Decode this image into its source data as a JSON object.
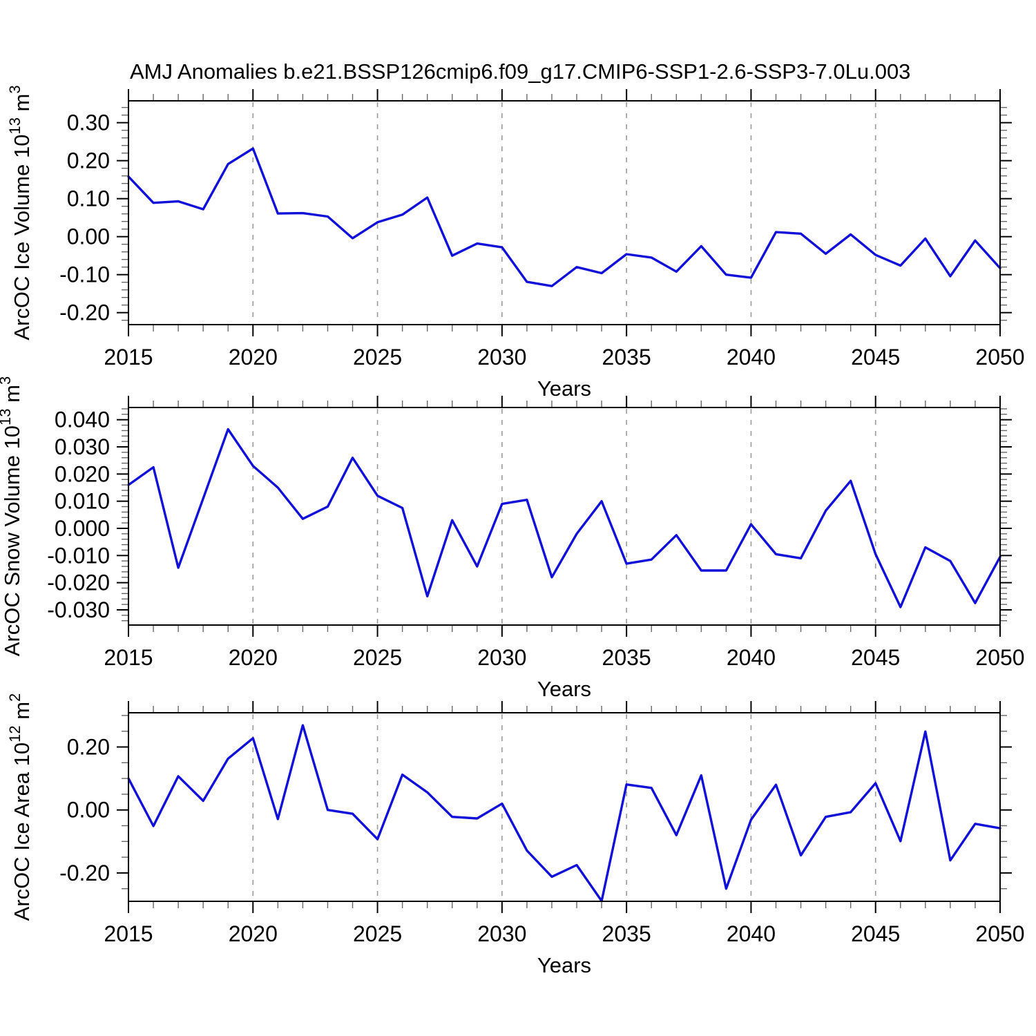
{
  "title": "AMJ Anomalies b.e21.BSSP126cmip6.f09_g17.CMIP6-SSP1-2.6-SSP3-7.0Lu.003",
  "xlabel": "Years",
  "line_color": "#1010d8",
  "grid_color": "#9a9a9a",
  "frame_color": "#000000",
  "minor_tick_color": "#666666",
  "chart_data": [
    {
      "type": "line",
      "name": "arcoc-ice-volume",
      "ylabel_text": "ArcOC Ice Volume 10^13 m^3",
      "ylabel_parts": [
        {
          "t": "ArcOC Ice Volume 10"
        },
        {
          "t": "13",
          "sup": true
        },
        {
          "t": " m"
        },
        {
          "t": "3",
          "sup": true
        }
      ],
      "xlabel": "Years",
      "x_start": 2015,
      "x_end": 2050,
      "x_major_step": 5,
      "x_minor_step": 1,
      "grid_x": [
        2020,
        2025,
        2030,
        2035,
        2040,
        2045
      ],
      "xtick_labels": [
        "2015",
        "2020",
        "2025",
        "2030",
        "2035",
        "2040",
        "2045",
        "2050"
      ],
      "ylim": [
        -0.2315,
        0.3575
      ],
      "yticks": [
        {
          "v": 0.3,
          "label": "0.30"
        },
        {
          "v": 0.2,
          "label": "0.20"
        },
        {
          "v": 0.1,
          "label": "0.10"
        },
        {
          "v": 0.0,
          "label": "0.00"
        },
        {
          "v": -0.1,
          "label": "-0.10"
        },
        {
          "v": -0.2,
          "label": "-0.20"
        }
      ],
      "y_minor_step": 0.02,
      "x": [
        2015,
        2016,
        2017,
        2018,
        2019,
        2020,
        2021,
        2022,
        2023,
        2024,
        2025,
        2026,
        2027,
        2028,
        2029,
        2030,
        2031,
        2032,
        2033,
        2034,
        2035,
        2036,
        2037,
        2038,
        2039,
        2040,
        2041,
        2042,
        2043,
        2044,
        2045,
        2046,
        2047,
        2048,
        2049,
        2050
      ],
      "values": [
        0.158,
        0.089,
        0.093,
        0.072,
        0.191,
        0.232,
        0.061,
        0.062,
        0.053,
        -0.004,
        0.038,
        0.058,
        0.103,
        -0.05,
        -0.018,
        -0.028,
        -0.119,
        -0.13,
        -0.08,
        -0.096,
        -0.046,
        -0.055,
        -0.092,
        -0.025,
        -0.1,
        -0.108,
        0.012,
        0.008,
        -0.045,
        0.006,
        -0.048,
        -0.076,
        -0.005,
        -0.104,
        -0.01,
        -0.083
      ]
    },
    {
      "type": "line",
      "name": "arcoc-snow-volume",
      "ylabel_text": "ArcOC Snow Volume 10^13 m^3",
      "ylabel_parts": [
        {
          "t": "ArcOC Snow Volume 10"
        },
        {
          "t": "13",
          "sup": true
        },
        {
          "t": " m"
        },
        {
          "t": "3",
          "sup": true
        }
      ],
      "xlabel": "Years",
      "x_start": 2015,
      "x_end": 2050,
      "x_major_step": 5,
      "x_minor_step": 1,
      "grid_x": [
        2020,
        2025,
        2030,
        2035,
        2040,
        2045
      ],
      "xtick_labels": [
        "2015",
        "2020",
        "2025",
        "2030",
        "2035",
        "2040",
        "2045",
        "2050"
      ],
      "ylim": [
        -0.0356,
        0.0445
      ],
      "yticks": [
        {
          "v": 0.04,
          "label": "0.040"
        },
        {
          "v": 0.03,
          "label": "0.030"
        },
        {
          "v": 0.02,
          "label": "0.020"
        },
        {
          "v": 0.01,
          "label": "0.010"
        },
        {
          "v": 0.0,
          "label": "0.000"
        },
        {
          "v": -0.01,
          "label": "-0.010"
        },
        {
          "v": -0.02,
          "label": "-0.020"
        },
        {
          "v": -0.03,
          "label": "-0.030"
        }
      ],
      "y_minor_step": 0.002,
      "x": [
        2015,
        2016,
        2017,
        2018,
        2019,
        2020,
        2021,
        2022,
        2023,
        2024,
        2025,
        2026,
        2027,
        2028,
        2029,
        2030,
        2031,
        2032,
        2033,
        2034,
        2035,
        2036,
        2037,
        2038,
        2039,
        2040,
        2041,
        2042,
        2043,
        2044,
        2045,
        2046,
        2047,
        2048,
        2049,
        2050
      ],
      "values": [
        0.016,
        0.0225,
        -0.0145,
        0.011,
        0.0365,
        0.023,
        0.015,
        0.0035,
        0.008,
        0.026,
        0.012,
        0.0075,
        -0.025,
        0.003,
        -0.014,
        0.009,
        0.0105,
        -0.018,
        -0.002,
        0.01,
        -0.013,
        -0.0115,
        -0.0025,
        -0.0155,
        -0.0155,
        0.0015,
        -0.0095,
        -0.011,
        0.0065,
        0.0175,
        -0.0095,
        -0.029,
        -0.007,
        -0.012,
        -0.0275,
        -0.0105
      ]
    },
    {
      "type": "line",
      "name": "arcoc-ice-area",
      "ylabel_text": "ArcOC Ice Area 10^12 m^2",
      "ylabel_parts": [
        {
          "t": "ArcOC Ice Area 10"
        },
        {
          "t": "12",
          "sup": true
        },
        {
          "t": " m"
        },
        {
          "t": "2",
          "sup": true
        }
      ],
      "xlabel": "Years",
      "x_start": 2015,
      "x_end": 2050,
      "x_major_step": 5,
      "x_minor_step": 1,
      "grid_x": [
        2020,
        2025,
        2030,
        2035,
        2040,
        2045
      ],
      "xtick_labels": [
        "2015",
        "2020",
        "2025",
        "2030",
        "2035",
        "2040",
        "2045",
        "2050"
      ],
      "ylim": [
        -0.2901,
        0.3086
      ],
      "yticks": [
        {
          "v": 0.2,
          "label": "0.20"
        },
        {
          "v": 0.0,
          "label": "0.00"
        },
        {
          "v": -0.2,
          "label": "-0.20"
        }
      ],
      "y_minor_step": 0.05,
      "x": [
        2015,
        2016,
        2017,
        2018,
        2019,
        2020,
        2021,
        2022,
        2023,
        2024,
        2025,
        2026,
        2027,
        2028,
        2029,
        2030,
        2031,
        2032,
        2033,
        2034,
        2035,
        2036,
        2037,
        2038,
        2039,
        2040,
        2041,
        2042,
        2043,
        2044,
        2045,
        2046,
        2047,
        2048,
        2049,
        2050
      ],
      "values": [
        0.1,
        -0.051,
        0.107,
        0.029,
        0.163,
        0.228,
        -0.029,
        0.269,
        0.0,
        -0.012,
        -0.093,
        0.112,
        0.056,
        -0.022,
        -0.027,
        0.02,
        -0.129,
        -0.212,
        -0.175,
        -0.289,
        0.081,
        0.07,
        -0.08,
        0.11,
        -0.25,
        -0.031,
        0.08,
        -0.144,
        -0.022,
        -0.007,
        0.085,
        -0.099,
        0.249,
        -0.16,
        -0.044,
        -0.058
      ]
    }
  ]
}
